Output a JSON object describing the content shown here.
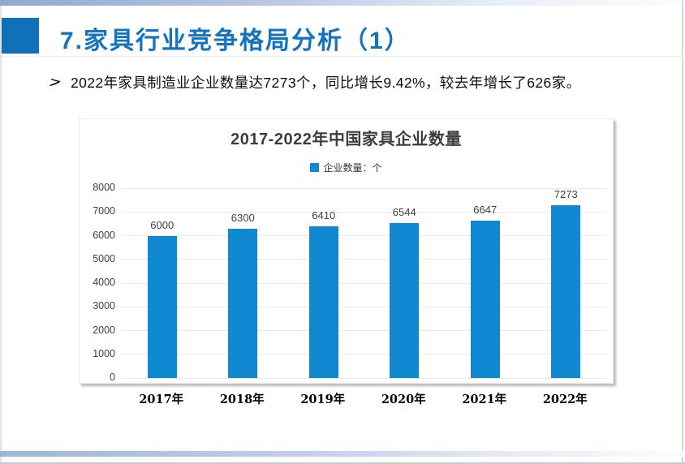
{
  "slide": {
    "title": "7.家具行业竞争格局分析（1）",
    "bullet_text": "2022年家具制造业企业数量达7273个，同比增长9.42%，较去年增长了626家。"
  },
  "colors": {
    "title_blue": "#1473BE",
    "accent_square": "#1171B8",
    "bar_blue": "#1088D2",
    "grid_line": "#E9E9E9",
    "top_bar_left": "#92A8D2",
    "bottom_bar_left": "#A0B4DB",
    "chart_text": "#404040"
  },
  "chart_data": {
    "type": "bar",
    "title": "2017-2022年中国家具企业数量",
    "legend": [
      "企业数量：个"
    ],
    "legend_position": "top",
    "categories": [
      "2017年",
      "2018年",
      "2019年",
      "2020年",
      "2021年",
      "2022年"
    ],
    "values": [
      6000,
      6300,
      6410,
      6544,
      6647,
      7273
    ],
    "data_labels": [
      6000,
      6300,
      6410,
      6544,
      6647,
      7273
    ],
    "xlabel": "",
    "ylabel": "",
    "ylim": [
      0,
      8000
    ],
    "ytick_step": 1000,
    "grid": true,
    "bar_color": "#1088D2"
  }
}
